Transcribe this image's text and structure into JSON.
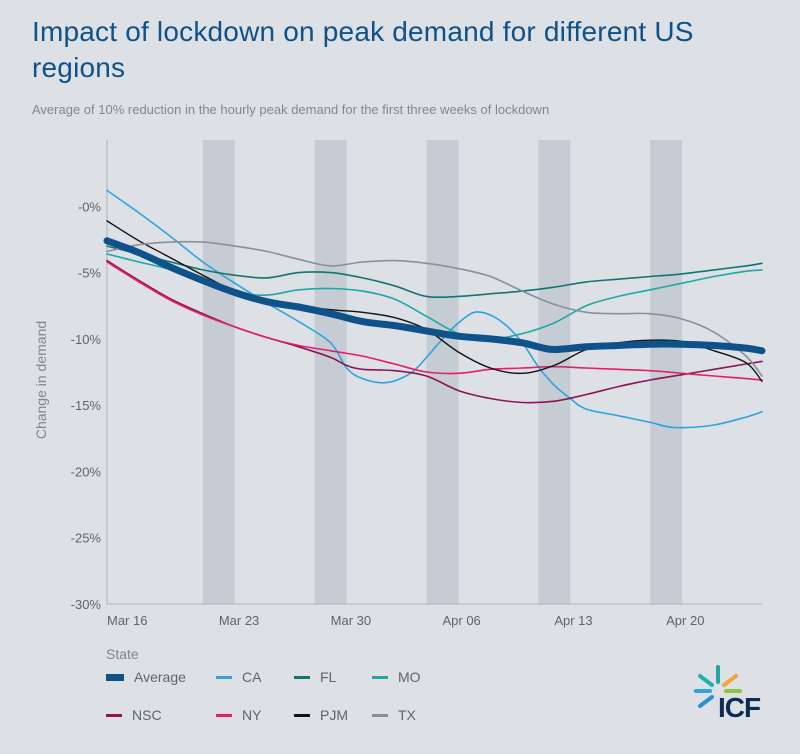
{
  "title": "Impact of lockdown on peak demand for different US regions",
  "subtitle": "Average of 10% reduction in the hourly peak demand for the first three weeks of lockdown",
  "logo_text": "ICF",
  "chart_data": {
    "type": "line",
    "ylabel": "Change in demand",
    "ylim": [
      -30,
      5
    ],
    "yticks": [
      0,
      -5,
      -10,
      -15,
      -20,
      -25,
      -30
    ],
    "ytick_labels": [
      "-0%",
      "-5%",
      "-10%",
      "-15%",
      "-20%",
      "-25%",
      "-30%"
    ],
    "xlim": [
      0,
      41
    ],
    "xticks": [
      0,
      7,
      14,
      21,
      28,
      35
    ],
    "xtick_labels": [
      "Mar 16",
      "Mar 23",
      "Mar 30",
      "Apr 06",
      "Apr 13",
      "Apr 20"
    ],
    "shaded_bands": [
      [
        6,
        8
      ],
      [
        13,
        15
      ],
      [
        20,
        22
      ],
      [
        27,
        29
      ],
      [
        34,
        36
      ]
    ],
    "grid": false,
    "legend_title": "State",
    "legend_position": "bottom",
    "series": [
      {
        "name": "CA",
        "color": "#2ea3df",
        "width": 1.6,
        "points": [
          [
            0,
            1.2
          ],
          [
            2,
            -0.5
          ],
          [
            4,
            -2.3
          ],
          [
            6,
            -4.2
          ],
          [
            8,
            -5.8
          ],
          [
            10,
            -7.3
          ],
          [
            12,
            -8.7
          ],
          [
            14,
            -10.3
          ],
          [
            15,
            -12.2
          ],
          [
            16,
            -13
          ],
          [
            17.5,
            -13.3
          ],
          [
            19,
            -12.6
          ],
          [
            20,
            -11.4
          ],
          [
            21,
            -10
          ],
          [
            22,
            -8.8
          ],
          [
            23,
            -8
          ],
          [
            24,
            -8.2
          ],
          [
            25,
            -9
          ],
          [
            26,
            -10.3
          ],
          [
            27,
            -12.1
          ],
          [
            28,
            -13.5
          ],
          [
            29,
            -14.5
          ],
          [
            30,
            -15.3
          ],
          [
            32,
            -15.8
          ],
          [
            34,
            -16.3
          ],
          [
            35,
            -16.6
          ],
          [
            36,
            -16.7
          ],
          [
            38,
            -16.5
          ],
          [
            40,
            -15.9
          ],
          [
            41,
            -15.5
          ]
        ]
      },
      {
        "name": "FL",
        "color": "#137471",
        "width": 1.6,
        "points": [
          [
            0,
            -3
          ],
          [
            2,
            -3.6
          ],
          [
            4,
            -4.2
          ],
          [
            6,
            -4.8
          ],
          [
            8,
            -5.2
          ],
          [
            10,
            -5.4
          ],
          [
            12,
            -5
          ],
          [
            14,
            -5
          ],
          [
            16,
            -5.4
          ],
          [
            18,
            -6
          ],
          [
            20,
            -6.8
          ],
          [
            22,
            -6.8
          ],
          [
            24,
            -6.6
          ],
          [
            26,
            -6.4
          ],
          [
            28,
            -6.1
          ],
          [
            30,
            -5.7
          ],
          [
            32,
            -5.5
          ],
          [
            34,
            -5.3
          ],
          [
            36,
            -5.1
          ],
          [
            38,
            -4.8
          ],
          [
            40,
            -4.5
          ],
          [
            41,
            -4.3
          ]
        ]
      },
      {
        "name": "MO",
        "color": "#1fa8a5",
        "width": 1.6,
        "points": [
          [
            0,
            -3.6
          ],
          [
            2,
            -4.2
          ],
          [
            4,
            -4.8
          ],
          [
            6,
            -5.8
          ],
          [
            8,
            -6.5
          ],
          [
            10,
            -6.7
          ],
          [
            12,
            -6.3
          ],
          [
            14,
            -6.2
          ],
          [
            16,
            -6.4
          ],
          [
            18,
            -7
          ],
          [
            20,
            -8.3
          ],
          [
            22,
            -9.6
          ],
          [
            24,
            -10
          ],
          [
            26,
            -9.6
          ],
          [
            28,
            -8.8
          ],
          [
            30,
            -7.5
          ],
          [
            32,
            -6.8
          ],
          [
            34,
            -6.3
          ],
          [
            36,
            -5.8
          ],
          [
            38,
            -5.3
          ],
          [
            40,
            -4.9
          ],
          [
            41,
            -4.8
          ]
        ]
      },
      {
        "name": "NSC",
        "color": "#8c1557",
        "width": 1.6,
        "points": [
          [
            0,
            -4.1
          ],
          [
            2,
            -5.6
          ],
          [
            4,
            -7
          ],
          [
            6,
            -8.1
          ],
          [
            8,
            -9.1
          ],
          [
            10,
            -9.9
          ],
          [
            12,
            -10.6
          ],
          [
            14,
            -11.4
          ],
          [
            15,
            -12
          ],
          [
            16,
            -12.3
          ],
          [
            18,
            -12.4
          ],
          [
            20,
            -12.8
          ],
          [
            22,
            -13.9
          ],
          [
            24,
            -14.5
          ],
          [
            26,
            -14.8
          ],
          [
            28,
            -14.7
          ],
          [
            30,
            -14.2
          ],
          [
            32,
            -13.6
          ],
          [
            34,
            -13.1
          ],
          [
            36,
            -12.7
          ],
          [
            38,
            -12.3
          ],
          [
            40,
            -11.9
          ],
          [
            41,
            -11.7
          ]
        ]
      },
      {
        "name": "NY",
        "color": "#e31f68",
        "width": 1.6,
        "points": [
          [
            0,
            -4.2
          ],
          [
            2,
            -5.7
          ],
          [
            4,
            -7.1
          ],
          [
            6,
            -8.2
          ],
          [
            8,
            -9.1
          ],
          [
            10,
            -9.9
          ],
          [
            12,
            -10.5
          ],
          [
            14,
            -10.9
          ],
          [
            16,
            -11.3
          ],
          [
            18,
            -11.9
          ],
          [
            20,
            -12.5
          ],
          [
            22,
            -12.6
          ],
          [
            24,
            -12.3
          ],
          [
            26,
            -12.2
          ],
          [
            28,
            -12.1
          ],
          [
            30,
            -12.2
          ],
          [
            32,
            -12.3
          ],
          [
            34,
            -12.4
          ],
          [
            36,
            -12.6
          ],
          [
            38,
            -12.8
          ],
          [
            40,
            -13
          ],
          [
            41,
            -13.1
          ]
        ]
      },
      {
        "name": "PJM",
        "color": "#111111",
        "width": 1.4,
        "points": [
          [
            0,
            -1.1
          ],
          [
            2,
            -2.6
          ],
          [
            4,
            -3.9
          ],
          [
            6,
            -5.2
          ],
          [
            8,
            -6.4
          ],
          [
            10,
            -7.2
          ],
          [
            12,
            -7.5
          ],
          [
            14,
            -7.8
          ],
          [
            16,
            -8
          ],
          [
            18,
            -8.4
          ],
          [
            20,
            -9.3
          ],
          [
            22,
            -11
          ],
          [
            24,
            -12.2
          ],
          [
            26,
            -12.6
          ],
          [
            28,
            -12
          ],
          [
            30,
            -10.8
          ],
          [
            32,
            -10.3
          ],
          [
            34,
            -10.1
          ],
          [
            36,
            -10.2
          ],
          [
            38,
            -10.9
          ],
          [
            40,
            -11.8
          ],
          [
            41,
            -13.2
          ]
        ]
      },
      {
        "name": "TX",
        "color": "#8a9099",
        "width": 1.6,
        "points": [
          [
            0,
            -3.4
          ],
          [
            2,
            -2.9
          ],
          [
            4,
            -2.7
          ],
          [
            6,
            -2.7
          ],
          [
            8,
            -3
          ],
          [
            10,
            -3.4
          ],
          [
            12,
            -4
          ],
          [
            14,
            -4.5
          ],
          [
            16,
            -4.2
          ],
          [
            18,
            -4.1
          ],
          [
            20,
            -4.3
          ],
          [
            22,
            -4.7
          ],
          [
            24,
            -5.3
          ],
          [
            26,
            -6.4
          ],
          [
            28,
            -7.4
          ],
          [
            30,
            -8
          ],
          [
            32,
            -8.1
          ],
          [
            34,
            -8.1
          ],
          [
            36,
            -8.5
          ],
          [
            38,
            -9.5
          ],
          [
            40,
            -11.3
          ],
          [
            41,
            -12.8
          ]
        ]
      },
      {
        "name": "Average",
        "color": "#0f5189",
        "width": 7,
        "points": [
          [
            0,
            -2.6
          ],
          [
            2,
            -3.5
          ],
          [
            4,
            -4.6
          ],
          [
            6,
            -5.6
          ],
          [
            8,
            -6.5
          ],
          [
            10,
            -7.2
          ],
          [
            12,
            -7.6
          ],
          [
            14,
            -8.1
          ],
          [
            16,
            -8.7
          ],
          [
            18,
            -9
          ],
          [
            20,
            -9.4
          ],
          [
            22,
            -9.8
          ],
          [
            24,
            -10
          ],
          [
            26,
            -10.3
          ],
          [
            27,
            -10.6
          ],
          [
            28,
            -10.8
          ],
          [
            30,
            -10.6
          ],
          [
            32,
            -10.5
          ],
          [
            34,
            -10.4
          ],
          [
            36,
            -10.4
          ],
          [
            38,
            -10.5
          ],
          [
            40,
            -10.7
          ],
          [
            41,
            -10.9
          ]
        ]
      }
    ]
  },
  "legend": [
    {
      "label": "Average",
      "color": "#0f5189",
      "thick": true
    },
    {
      "label": "CA",
      "color": "#2ea3df",
      "thick": false
    },
    {
      "label": "FL",
      "color": "#137471",
      "thick": false
    },
    {
      "label": "MO",
      "color": "#1fa8a5",
      "thick": false
    },
    {
      "label": "NSC",
      "color": "#8c1557",
      "thick": false
    },
    {
      "label": "NY",
      "color": "#e31f68",
      "thick": false
    },
    {
      "label": "PJM",
      "color": "#111111",
      "thick": false
    },
    {
      "label": "TX",
      "color": "#8a9099",
      "thick": false
    }
  ]
}
